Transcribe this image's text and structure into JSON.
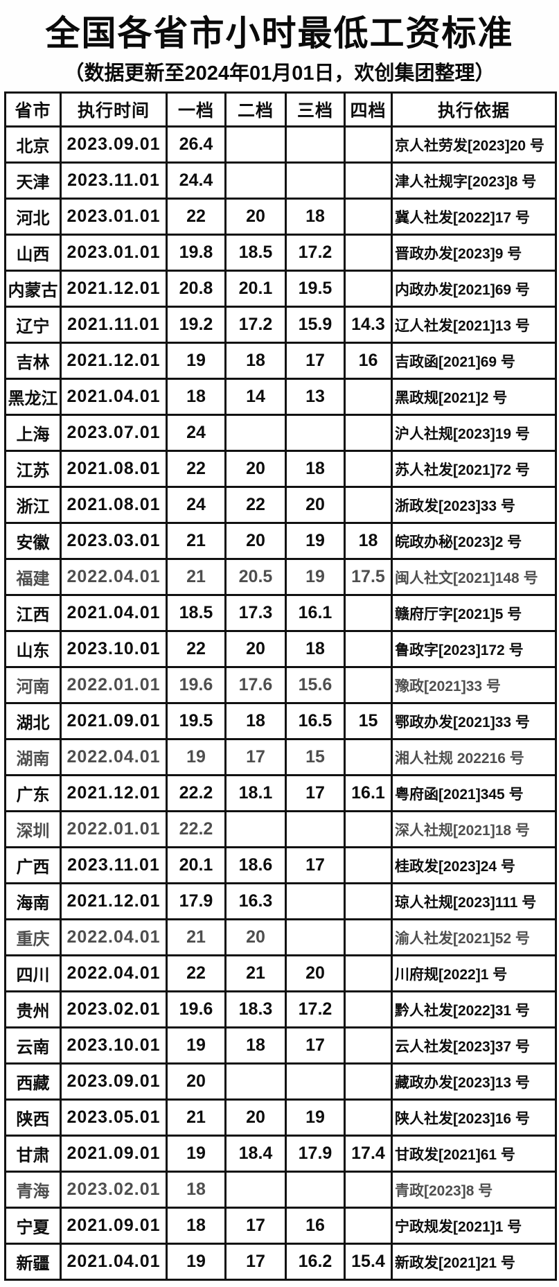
{
  "page": {
    "title": "全国各省市小时最低工资标准",
    "subtitle": "（数据更新至2024年01月01日，欢创集团整理）"
  },
  "colors": {
    "ink": "#0d0d0d",
    "faded_ink": "#4e4e4e",
    "border": "#111111",
    "paper": "#ffffff"
  },
  "table": {
    "columns": [
      "省市",
      "执行时间",
      "一档",
      "二档",
      "三档",
      "四档",
      "执行依据"
    ],
    "rows": [
      {
        "cells": [
          "北京",
          "2023.09.01",
          "26.4",
          "",
          "",
          "",
          "京人社劳发[2023]20 号"
        ]
      },
      {
        "cells": [
          "天津",
          "2023.11.01",
          "24.4",
          "",
          "",
          "",
          "津人社规字[2023]8 号"
        ]
      },
      {
        "cells": [
          "河北",
          "2023.01.01",
          "22",
          "20",
          "18",
          "",
          "冀人社发[2022]17 号"
        ]
      },
      {
        "cells": [
          "山西",
          "2023.01.01",
          "19.8",
          "18.5",
          "17.2",
          "",
          "晋政办发[2023]9 号"
        ]
      },
      {
        "cells": [
          "内蒙古",
          "2021.12.01",
          "20.8",
          "20.1",
          "19.5",
          "",
          "内政办发[2021]69 号"
        ]
      },
      {
        "cells": [
          "辽宁",
          "2021.11.01",
          "19.2",
          "17.2",
          "15.9",
          "14.3",
          "辽人社发[2021]13 号"
        ]
      },
      {
        "cells": [
          "吉林",
          "2021.12.01",
          "19",
          "18",
          "17",
          "16",
          "吉政函[2021]69 号"
        ]
      },
      {
        "cells": [
          "黑龙江",
          "2021.04.01",
          "18",
          "14",
          "13",
          "",
          "黑政规[2021]2 号"
        ]
      },
      {
        "cells": [
          "上海",
          "2023.07.01",
          "24",
          "",
          "",
          "",
          "沪人社规[2023]19 号"
        ]
      },
      {
        "cells": [
          "江苏",
          "2021.08.01",
          "22",
          "20",
          "18",
          "",
          "苏人社发[2021]72 号"
        ]
      },
      {
        "cells": [
          "浙江",
          "2021.08.01",
          "24",
          "22",
          "20",
          "",
          "浙政发[2023]33 号"
        ]
      },
      {
        "cells": [
          "安徽",
          "2023.03.01",
          "21",
          "20",
          "19",
          "18",
          "皖政办秘[2023]2 号"
        ]
      },
      {
        "cells": [
          "福建",
          "2022.04.01",
          "21",
          "20.5",
          "19",
          "17.5",
          "闽人社文[2021]148 号"
        ],
        "tone": "faded"
      },
      {
        "cells": [
          "江西",
          "2021.04.01",
          "18.5",
          "17.3",
          "16.1",
          "",
          "赣府厅字[2021]5 号"
        ]
      },
      {
        "cells": [
          "山东",
          "2023.10.01",
          "22",
          "20",
          "18",
          "",
          "鲁政字[2023]172 号"
        ]
      },
      {
        "cells": [
          "河南",
          "2022.01.01",
          "19.6",
          "17.6",
          "15.6",
          "",
          "豫政[2021]33 号"
        ],
        "tone": "faded"
      },
      {
        "cells": [
          "湖北",
          "2021.09.01",
          "19.5",
          "18",
          "16.5",
          "15",
          "鄂政办发[2021]33 号"
        ]
      },
      {
        "cells": [
          "湖南",
          "2022.04.01",
          "19",
          "17",
          "15",
          "",
          "湘人社规 202216 号"
        ],
        "tone": "faded"
      },
      {
        "cells": [
          "广东",
          "2021.12.01",
          "22.2",
          "18.1",
          "17",
          "16.1",
          "粤府函[2021]345 号"
        ]
      },
      {
        "cells": [
          "深圳",
          "2022.01.01",
          "22.2",
          "",
          "",
          "",
          "深人社规[2021]18 号"
        ],
        "tone": "faded"
      },
      {
        "cells": [
          "广西",
          "2023.11.01",
          "20.1",
          "18.6",
          "17",
          "",
          "桂政发[2023]24 号"
        ]
      },
      {
        "cells": [
          "海南",
          "2021.12.01",
          "17.9",
          "16.3",
          "",
          "",
          "琼人社规[2023]111 号"
        ]
      },
      {
        "cells": [
          "重庆",
          "2022.04.01",
          "21",
          "20",
          "",
          "",
          "渝人社发[2021]52 号"
        ],
        "tone": "faded"
      },
      {
        "cells": [
          "四川",
          "2022.04.01",
          "22",
          "21",
          "20",
          "",
          "川府规[2022]1 号"
        ]
      },
      {
        "cells": [
          "贵州",
          "2023.02.01",
          "19.6",
          "18.3",
          "17.2",
          "",
          "黔人社发[2022]31 号"
        ]
      },
      {
        "cells": [
          "云南",
          "2023.10.01",
          "19",
          "18",
          "17",
          "",
          "云人社发[2023]37 号"
        ]
      },
      {
        "cells": [
          "西藏",
          "2023.09.01",
          "20",
          "",
          "",
          "",
          "藏政办发[2023]13 号"
        ]
      },
      {
        "cells": [
          "陕西",
          "2023.05.01",
          "21",
          "20",
          "19",
          "",
          "陕人社发[2023]16 号"
        ]
      },
      {
        "cells": [
          "甘肃",
          "2021.09.01",
          "19",
          "18.4",
          "17.9",
          "17.4",
          "甘政发[2021]61 号"
        ]
      },
      {
        "cells": [
          "青海",
          "2023.02.01",
          "18",
          "",
          "",
          "",
          "青政[2023]8 号"
        ],
        "tone": "faded"
      },
      {
        "cells": [
          "宁夏",
          "2021.09.01",
          "18",
          "17",
          "16",
          "",
          "宁政规发[2021]1 号"
        ]
      },
      {
        "cells": [
          "新疆",
          "2021.04.01",
          "19",
          "17",
          "16.2",
          "15.4",
          "新政发[2021]21 号"
        ]
      }
    ]
  }
}
